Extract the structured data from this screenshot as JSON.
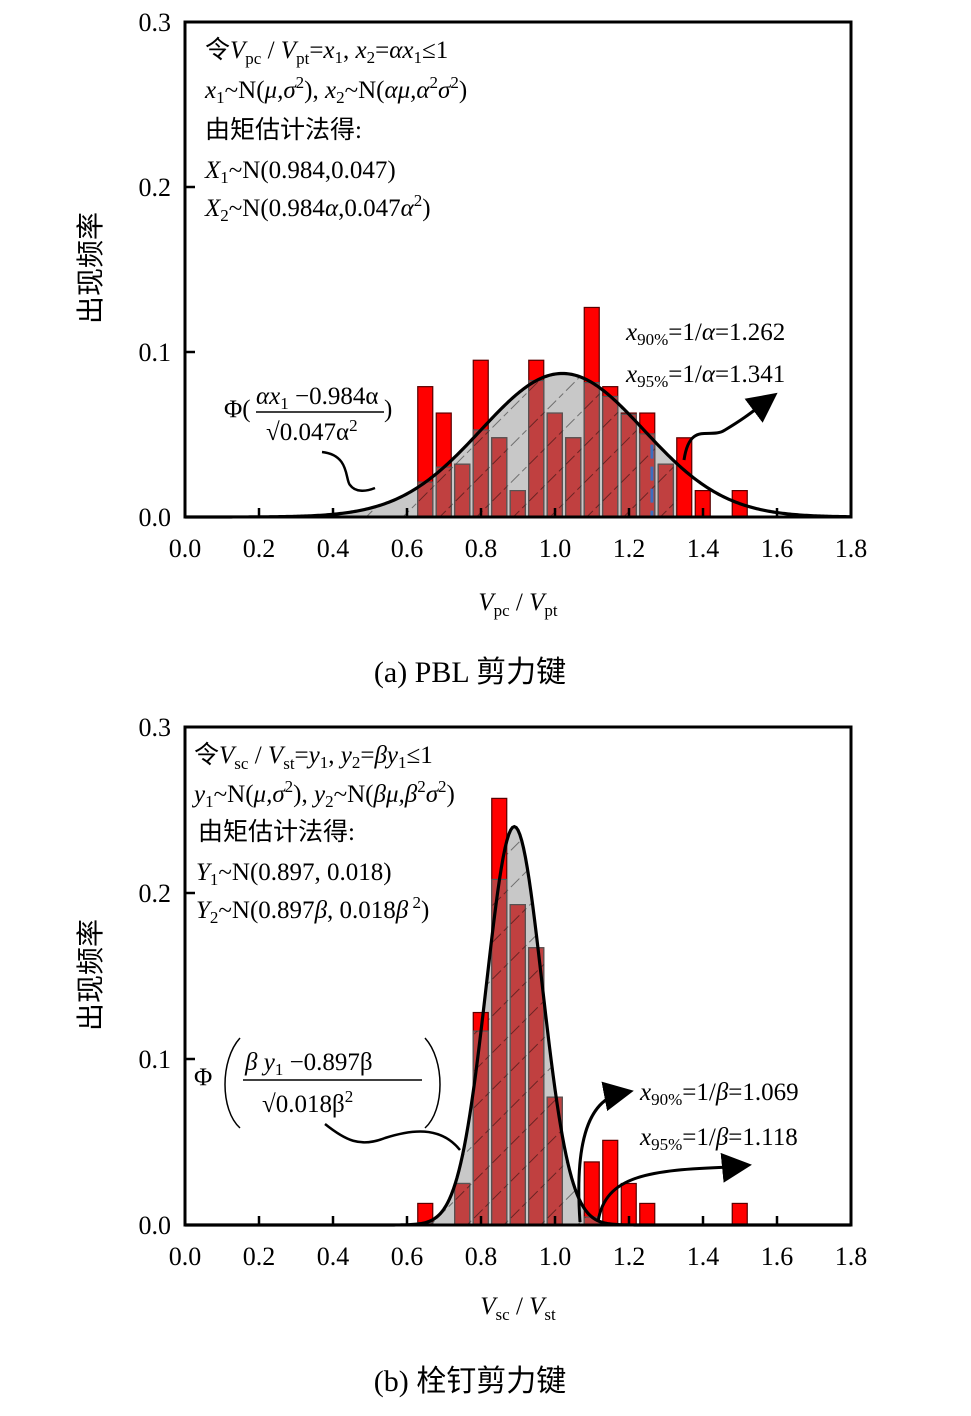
{
  "chart_data": [
    {
      "type": "bar",
      "id": "a",
      "caption": "(a) PBL 剪力键",
      "xlabel": {
        "main": "V",
        "sub1": "pc",
        "sep": " / ",
        "main2": "V",
        "sub2": "pt"
      },
      "ylabel": "出现频率",
      "xlim": [
        0.0,
        1.8
      ],
      "ylim": [
        0.0,
        0.3
      ],
      "xticks": [
        "0.0",
        "0.2",
        "0.4",
        "0.6",
        "0.8",
        "1.0",
        "1.2",
        "1.4",
        "1.6",
        "1.8"
      ],
      "yticks": [
        "0.0",
        "0.1",
        "0.2",
        "0.3"
      ],
      "bin_width": 0.05,
      "bars": {
        "x": [
          0.65,
          0.7,
          0.75,
          0.8,
          0.85,
          0.9,
          0.95,
          1.0,
          1.05,
          1.1,
          1.15,
          1.2,
          1.25,
          1.3,
          1.35,
          1.4,
          1.5
        ],
        "values": [
          0.079,
          0.063,
          0.032,
          0.095,
          0.048,
          0.016,
          0.095,
          0.063,
          0.048,
          0.127,
          0.079,
          0.063,
          0.063,
          0.032,
          0.048,
          0.016,
          0.016
        ]
      },
      "curve": {
        "type": "normal",
        "mean": 1.02,
        "peak": 0.087,
        "sigma": 0.22
      },
      "shaded_region_x": [
        0.0,
        1.341
      ],
      "dashed_line_x": 1.262,
      "annotation_box": [
        "令V_pc / V_pt=x1, x2=αx1≤1",
        "x1~N(μ,σ²), x2~N(αμ,α²σ²)",
        "由矩估计法得:",
        "X1~N(0.984,0.047)",
        "X2~N(0.984α,0.047α²)"
      ],
      "annotation_right": [
        "x90%=1/α=1.262",
        "x95%=1/α=1.341"
      ],
      "annotation_formula": "Φ((αx1−0.984α)/√(0.047α²))",
      "colors": {
        "bar": "#ff0000",
        "bar_overlap": "#c04040",
        "shade": "#c8c8c8",
        "curve": "#000000",
        "dashed": "#3a6fc0"
      }
    },
    {
      "type": "bar",
      "id": "b",
      "caption": "(b)  栓钉剪力键",
      "xlabel": {
        "main": "V",
        "sub1": "sc",
        "sep": " / ",
        "main2": "V",
        "sub2": "st"
      },
      "ylabel": "出现频率",
      "xlim": [
        0.0,
        1.8
      ],
      "ylim": [
        0.0,
        0.3
      ],
      "xticks": [
        "0.0",
        "0.2",
        "0.4",
        "0.6",
        "0.8",
        "1.0",
        "1.2",
        "1.4",
        "1.6",
        "1.8"
      ],
      "yticks": [
        "0.0",
        "0.1",
        "0.2",
        "0.3"
      ],
      "bin_width": 0.05,
      "bars": {
        "x": [
          0.65,
          0.75,
          0.8,
          0.85,
          0.9,
          0.95,
          1.0,
          1.1,
          1.15,
          1.2,
          1.25,
          1.5
        ],
        "values": [
          0.013,
          0.025,
          0.128,
          0.257,
          0.193,
          0.167,
          0.077,
          0.038,
          0.051,
          0.025,
          0.013,
          0.013
        ]
      },
      "curve": {
        "type": "normal",
        "mean": 0.89,
        "peak": 0.24,
        "sigma": 0.075
      },
      "shaded_region_x": [
        0.0,
        1.118
      ],
      "annotation_box": [
        "令V_sc / V_st=y1, y2=βy1≤1",
        "y1~N(μ,σ²), y2~N(βμ,β²σ²)",
        "由矩估计法得:",
        "Y1~N(0.897, 0.018)",
        "Y2~N(0.897β, 0.018β²)"
      ],
      "annotation_right": [
        "x90%=1/β=1.069",
        "x95%=1/β=1.118"
      ],
      "annotation_formula": "Φ((βy1−0.897β)/√(0.018β²))",
      "colors": {
        "bar": "#ff0000",
        "bar_overlap": "#c04040",
        "shade": "#c8c8c8",
        "curve": "#000000"
      }
    }
  ],
  "text": {
    "a": {
      "l1": {
        "ling": "令",
        "V": "V",
        "pc": "pc",
        "slash": " / ",
        "V2": "V",
        "pt": "pt",
        "eq": "=",
        "x": "x",
        "s1": "1",
        "comma": ", ",
        "x2": "x",
        "s2": "2",
        "eq2": "=",
        "ax": "αx",
        "s3": "1",
        "le": "≤1"
      },
      "l2": {
        "x": "x",
        "s1": "1",
        "a": "~N(",
        "mu": "μ,σ",
        "sq": "2",
        "b": "), ",
        "x2": "x",
        "s2": "2",
        "c": "~N(",
        "amu": "αμ,α",
        "sq2": "2",
        "sig": "σ",
        "sq3": "2",
        "d": ")"
      },
      "l3": "由矩估计法得:",
      "l4": {
        "X": "X",
        "s": "1",
        "rest": "~N(0.984,0.047)"
      },
      "l5": {
        "X": "X",
        "s": "2",
        "a": "~N(0.984",
        "al": "α",
        "b": ",0.047",
        "al2": "α",
        "sq": "2",
        "c": ")"
      },
      "r1": {
        "x": "x",
        "sub": "90%",
        "a": "=1/",
        "al": "α",
        "b": "=1.262"
      },
      "r2": {
        "x": "x",
        "sub": "95%",
        "a": "=1/",
        "al": "α",
        "b": "=1.341"
      },
      "phi": {
        "Phi": "Φ(",
        "num1": "αx",
        "num_s": "1",
        "num2": " −0.984α",
        "den": "√0.047α",
        "den_sq": "2",
        "close": ")"
      }
    },
    "b": {
      "l1": {
        "ling": "令",
        "V": "V",
        "sc": "sc",
        "slash": " / ",
        "V2": "V",
        "st": "st",
        "eq": "=",
        "y": "y",
        "s1": "1",
        "comma": ", ",
        "y2": "y",
        "s2": "2",
        "eq2": "=",
        "by": "βy",
        "s3": "1",
        "le": "≤1"
      },
      "l2": {
        "y": "y",
        "s1": "1",
        "a": "~N(",
        "mu": "μ,σ",
        "sq": "2",
        "b": "), ",
        "y2": "y",
        "s2": "2",
        "c": "~N(",
        "bmu": "βμ,β",
        "sq2": "2",
        "sig": "σ",
        "sq3": "2",
        "d": ")"
      },
      "l3": "由矩估计法得:",
      "l4": {
        "Y": "Y",
        "s": "1",
        "rest": "~N(0.897, 0.018)"
      },
      "l5": {
        "Y": "Y",
        "s": "2",
        "a": "~N(0.897",
        "be": "β",
        "b": ", 0.018",
        "be2": "β",
        "sq": " 2",
        "c": ")"
      },
      "r1": {
        "x": "x",
        "sub": "90%",
        "a": "=1/",
        "be": "β",
        "b": "=1.069"
      },
      "r2": {
        "x": "x",
        "sub": "95%",
        "a": "=1/",
        "be": "β",
        "b": "=1.118"
      },
      "phi": {
        "Phi": "Φ",
        "num1": "β y",
        "num_s": "1",
        "num2": " −0.897β",
        "den": "√0.018β",
        "den_sq": "2"
      }
    }
  }
}
